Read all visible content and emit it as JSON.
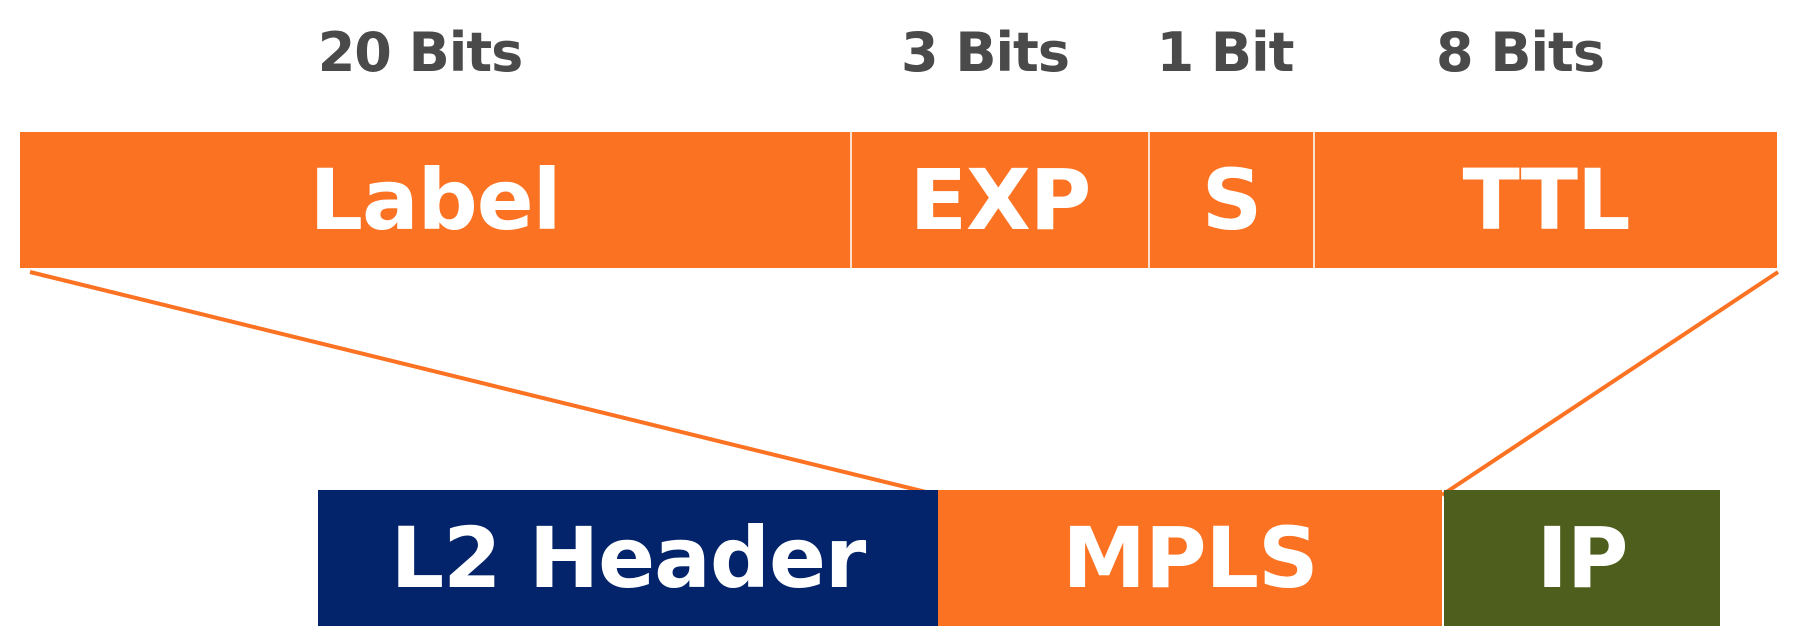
{
  "bit_widths": {
    "label": "20 Bits",
    "exp": "3 Bits",
    "s": "1 Bit",
    "ttl": "8 Bits"
  },
  "mpls_fields": {
    "label": "Label",
    "exp": "EXP",
    "s": "S",
    "ttl": "TTL"
  },
  "frame": {
    "l2_header": "L2 Header",
    "mpls": "MPLS",
    "ip": "IP"
  },
  "colors": {
    "mpls_orange": "#fc7223",
    "l2_navy": "#03236a",
    "ip_green": "#4e5e1c",
    "bits_text": "#4a4a4a"
  }
}
